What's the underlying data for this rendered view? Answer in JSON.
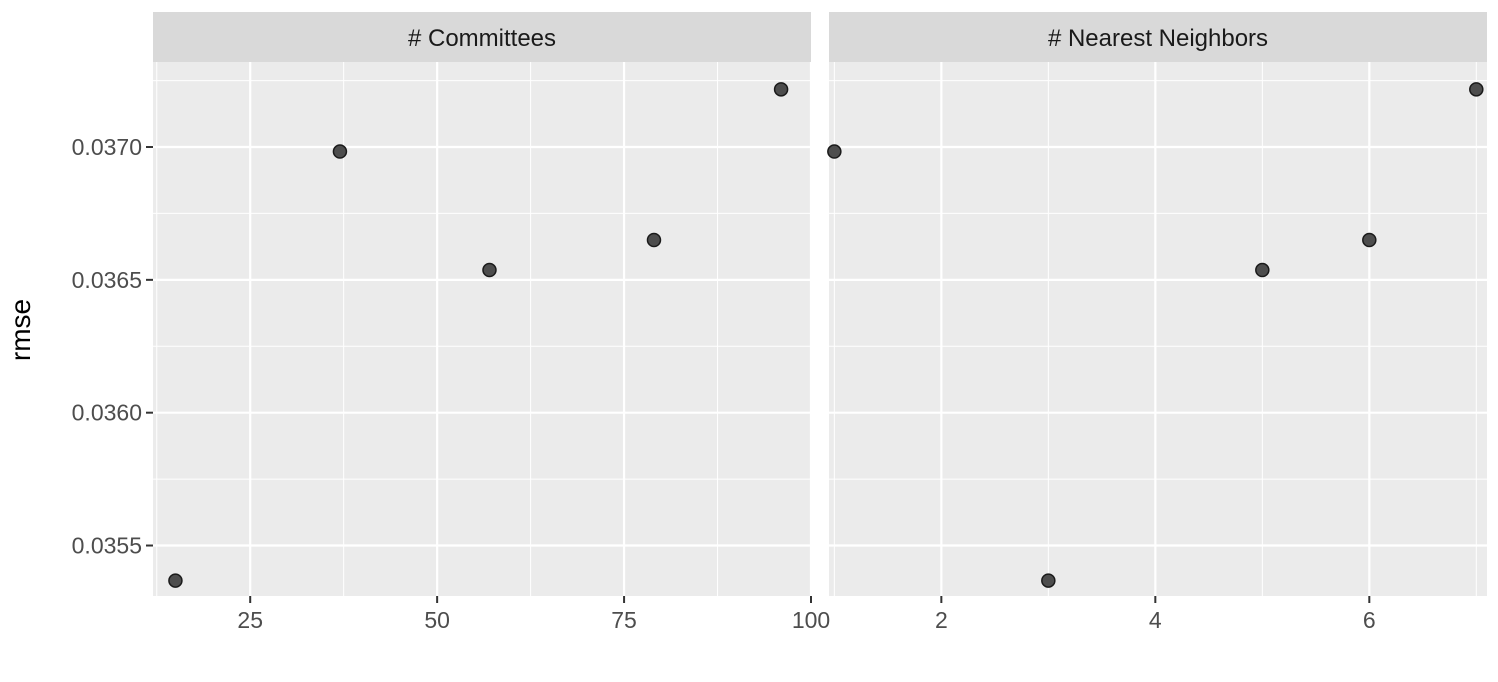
{
  "chart_data": {
    "type": "scatter",
    "ylabel": "rmse",
    "ylim": [
      0.03531,
      0.03732
    ],
    "yticks": [
      "0.0355",
      "0.0360",
      "0.0365",
      "0.0370"
    ],
    "colors": {
      "panel_bg": "#ebebeb",
      "strip_bg": "#d9d9d9",
      "grid": "#ffffff",
      "point_fill": "#4d4d4d",
      "point_stroke": "#1a1a1a"
    },
    "panels": [
      {
        "title": "# Committees",
        "xlim": [
          12,
          100
        ],
        "xticks": [
          "25",
          "50",
          "75",
          "100"
        ],
        "x": [
          15,
          37,
          57,
          79,
          96
        ],
        "y": [
          0.035368,
          0.036983,
          0.036537,
          0.03665,
          0.037217
        ]
      },
      {
        "title": "# Nearest Neighbors",
        "xlim": [
          0.95,
          7.1
        ],
        "xticks": [
          "2",
          "4",
          "6"
        ],
        "x": [
          1,
          3,
          5,
          6,
          7
        ],
        "y": [
          0.036983,
          0.035368,
          0.036537,
          0.03665,
          0.037217
        ]
      }
    ]
  }
}
